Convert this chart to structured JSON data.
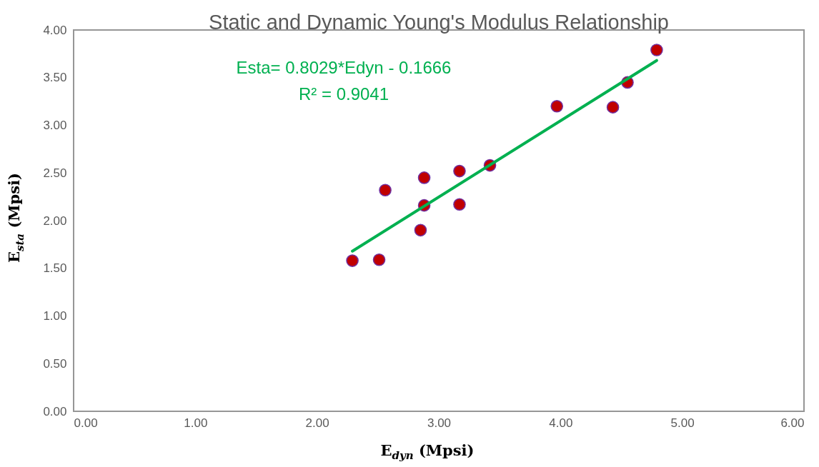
{
  "chart_data": {
    "type": "scatter",
    "title": "Static and Dynamic Young's Modulus Relationship",
    "xlabel": "E$_{dyn}$ (Mpsi)",
    "ylabel": "E$_{sta}$ (Mpsi)",
    "x": [
      2.29,
      2.51,
      2.56,
      2.85,
      2.88,
      2.88,
      3.17,
      3.17,
      3.42,
      3.97,
      4.43,
      4.55,
      4.79
    ],
    "series": [
      {
        "color": "#c00000",
        "marker": "circle",
        "values": [
          1.58,
          1.59,
          2.32,
          1.9,
          2.45,
          2.16,
          2.52,
          2.17,
          2.58,
          3.2,
          3.19,
          3.45,
          3.79
        ]
      },
      {
        "type": "line",
        "color": "#00b050",
        "x": [
          2.29,
          4.79
        ],
        "values": [
          1.68,
          3.68
        ]
      }
    ],
    "annotations": [
      {
        "text": "Esta= 0.8029*Edyn - 0.1666"
      },
      {
        "text": "R² = 0.9041"
      }
    ],
    "xlim": [
      0,
      6
    ],
    "ylim": [
      0,
      4
    ],
    "xticks": [
      {
        "value": 0,
        "label": "0.00"
      },
      {
        "value": 1,
        "label": "1.00"
      },
      {
        "value": 2,
        "label": "2.00"
      },
      {
        "value": 3,
        "label": "3.00"
      },
      {
        "value": 4,
        "label": "4.00"
      },
      {
        "value": 5,
        "label": "5.00"
      },
      {
        "value": 6,
        "label": "6.00"
      }
    ],
    "yticks": [
      {
        "value": 0,
        "label": "0.00"
      },
      {
        "value": 0.5,
        "label": "0.50"
      },
      {
        "value": 1,
        "label": "1.00"
      },
      {
        "value": 1.5,
        "label": "1.50"
      },
      {
        "value": 2,
        "label": "2.00"
      },
      {
        "value": 2.5,
        "label": "2.50"
      },
      {
        "value": 3,
        "label": "3.00"
      },
      {
        "value": 3.5,
        "label": "3.50"
      },
      {
        "value": 4,
        "label": "4.00"
      }
    ]
  }
}
